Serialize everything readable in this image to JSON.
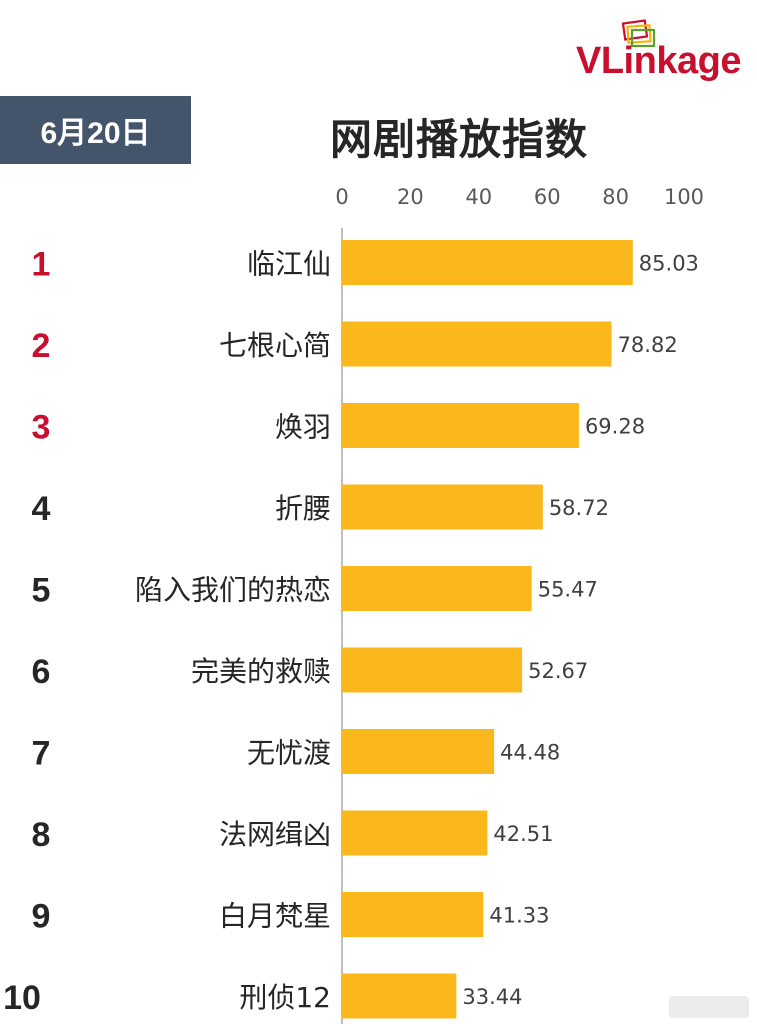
{
  "brand": {
    "logo_text_a": "VLink",
    "logo_text_b": "age",
    "logo_color": "#c8102e"
  },
  "header": {
    "date": "6月20日",
    "title": "网剧播放指数"
  },
  "colors": {
    "bar": "#fbb81c",
    "date_box": "#44546a",
    "rank_top": "#c8102e",
    "rank_other": "#262626"
  },
  "chart_data": {
    "type": "bar",
    "orientation": "horizontal",
    "title": "网剧播放指数",
    "xlim": [
      0,
      100
    ],
    "x_ticks": [
      0,
      20,
      40,
      60,
      80,
      100
    ],
    "grid": false,
    "ranks": [
      1,
      2,
      3,
      4,
      5,
      6,
      7,
      8,
      9,
      10
    ],
    "categories": [
      "临江仙",
      "七根心简",
      "焕羽",
      "折腰",
      "陷入我们的热恋",
      "完美的救赎",
      "无忧渡",
      "法网缉凶",
      "白月梵星",
      "刑侦12"
    ],
    "values": [
      85.03,
      78.82,
      69.28,
      58.72,
      55.47,
      52.67,
      44.48,
      42.51,
      41.33,
      33.44
    ],
    "value_labels": [
      "85.03",
      "78.82",
      "69.28",
      "58.72",
      "55.47",
      "52.67",
      "44.48",
      "42.51",
      "41.33",
      "33.44"
    ]
  }
}
